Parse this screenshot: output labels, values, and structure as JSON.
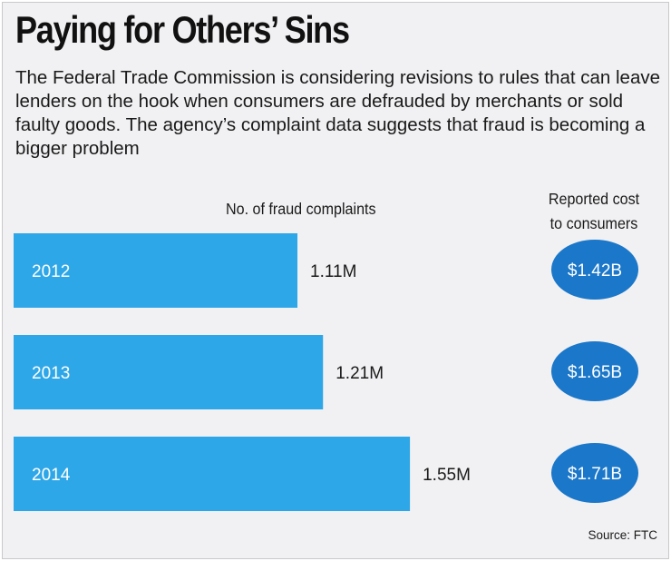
{
  "title": "Paying for Others’ Sins",
  "subtitle": "The Federal Trade Commission is considering revisions to rules that can leave lenders on the hook when consumers are defrauded by merchants or sold faulty goods. The agency’s complaint data suggests that fraud is becoming a bigger problem",
  "source": "Source: FTC",
  "colors": {
    "bar": "#2ea7e8",
    "bubble": "#1a77c9",
    "background": "#f1f1f3"
  },
  "chart_data": {
    "type": "bar",
    "orientation": "horizontal",
    "categories": [
      "2012",
      "2013",
      "2014"
    ],
    "series": [
      {
        "name": "No. of fraud complaints",
        "values": [
          1.11,
          1.21,
          1.55
        ],
        "unit": "M",
        "labels": [
          "1.11M",
          "1.21M",
          "1.55M"
        ]
      },
      {
        "name": "Reported cost to consumers",
        "values": [
          1.42,
          1.65,
          1.71
        ],
        "unit": "B",
        "labels": [
          "$1.42B",
          "$1.65B",
          "$1.71B"
        ]
      }
    ],
    "column_headers": {
      "count": "No. of fraud complaints",
      "cost_line1": "Reported cost",
      "cost_line2": "to consumers"
    },
    "grid": false
  }
}
